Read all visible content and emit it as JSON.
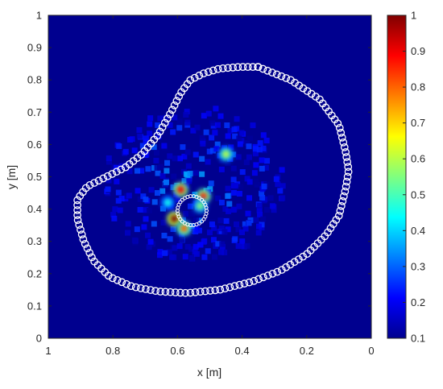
{
  "chart_data": {
    "type": "heatmap",
    "title": "",
    "xlabel": "x [m]",
    "ylabel": "y [m]",
    "xlim": [
      1,
      0
    ],
    "ylim": [
      0,
      1
    ],
    "x_reversed": true,
    "x_ticks": [
      "1",
      "0.8",
      "0.6",
      "0.4",
      "0.2",
      "0"
    ],
    "x_tick_values": [
      1,
      0.8,
      0.6,
      0.4,
      0.2,
      0
    ],
    "y_ticks": [
      "0",
      "0.1",
      "0.2",
      "0.3",
      "0.4",
      "0.5",
      "0.6",
      "0.7",
      "0.8",
      "0.9",
      "1"
    ],
    "y_tick_values": [
      0,
      0.1,
      0.2,
      0.3,
      0.4,
      0.5,
      0.6,
      0.7,
      0.8,
      0.9,
      1
    ],
    "colorbar": {
      "colormap": "jet",
      "range": [
        0.1,
        1
      ],
      "ticks": [
        "0.1",
        "0.2",
        "0.3",
        "0.4",
        "0.5",
        "0.6",
        "0.7",
        "0.8",
        "0.9",
        "1"
      ],
      "tick_values": [
        0.1,
        0.2,
        0.3,
        0.4,
        0.5,
        0.6,
        0.7,
        0.8,
        0.9,
        1
      ]
    },
    "grid": false,
    "hotspots": [
      {
        "x": 0.59,
        "y": 0.46,
        "value": 0.9
      },
      {
        "x": 0.52,
        "y": 0.44,
        "value": 0.85
      },
      {
        "x": 0.61,
        "y": 0.37,
        "value": 1.0
      },
      {
        "x": 0.58,
        "y": 0.34,
        "value": 0.8
      },
      {
        "x": 0.45,
        "y": 0.57,
        "value": 0.6
      },
      {
        "x": 0.53,
        "y": 0.41,
        "value": 0.55
      },
      {
        "x": 0.63,
        "y": 0.42,
        "value": 0.45
      }
    ],
    "boundary_marker_color": "#ffffff",
    "boundary_outline": [
      [
        0.35,
        0.84
      ],
      [
        0.25,
        0.8
      ],
      [
        0.16,
        0.74
      ],
      [
        0.1,
        0.66
      ],
      [
        0.08,
        0.58
      ],
      [
        0.07,
        0.52
      ],
      [
        0.08,
        0.46
      ],
      [
        0.1,
        0.38
      ],
      [
        0.14,
        0.32
      ],
      [
        0.2,
        0.26
      ],
      [
        0.28,
        0.21
      ],
      [
        0.37,
        0.175
      ],
      [
        0.47,
        0.15
      ],
      [
        0.57,
        0.14
      ],
      [
        0.66,
        0.145
      ],
      [
        0.74,
        0.16
      ],
      [
        0.81,
        0.19
      ],
      [
        0.86,
        0.24
      ],
      [
        0.89,
        0.3
      ],
      [
        0.91,
        0.37
      ],
      [
        0.91,
        0.43
      ],
      [
        0.88,
        0.47
      ],
      [
        0.82,
        0.5
      ],
      [
        0.76,
        0.53
      ],
      [
        0.71,
        0.57
      ],
      [
        0.66,
        0.63
      ],
      [
        0.62,
        0.7
      ],
      [
        0.59,
        0.76
      ],
      [
        0.56,
        0.8
      ],
      [
        0.52,
        0.82
      ],
      [
        0.47,
        0.835
      ],
      [
        0.41,
        0.84
      ]
    ],
    "target_circle": {
      "cx": 0.555,
      "cy": 0.395,
      "r": 0.045
    }
  }
}
